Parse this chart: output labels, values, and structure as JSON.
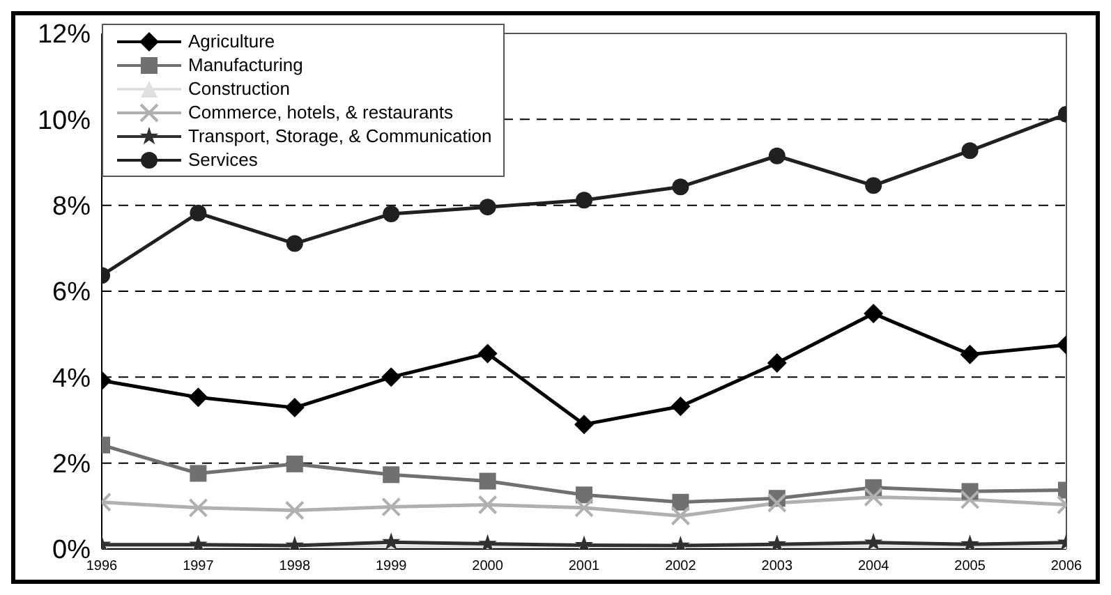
{
  "chart_data": {
    "type": "line",
    "categories": [
      "1996",
      "1997",
      "1998",
      "1999",
      "2000",
      "2001",
      "2002",
      "2003",
      "2004",
      "2005",
      "2006"
    ],
    "series": [
      {
        "name": "Agriculture",
        "color": "#000000",
        "marker": "diamond",
        "values": [
          3.92,
          3.53,
          3.29,
          4.0,
          4.55,
          2.9,
          3.32,
          4.33,
          5.48,
          4.53,
          4.75
        ]
      },
      {
        "name": "Manufacturing",
        "color": "#707070",
        "marker": "square",
        "values": [
          2.42,
          1.76,
          1.98,
          1.73,
          1.58,
          1.26,
          1.09,
          1.18,
          1.43,
          1.34,
          1.37
        ]
      },
      {
        "name": "Construction",
        "color": "#e0e0e0",
        "marker": "triangle",
        "values": [
          0.05,
          0.05,
          0.05,
          0.05,
          0.05,
          0.05,
          0.05,
          0.05,
          0.05,
          0.05,
          0.05
        ]
      },
      {
        "name": "Commerce, hotels, & restaurants",
        "color": "#b0b0b0",
        "marker": "cross",
        "values": [
          1.09,
          0.96,
          0.9,
          0.98,
          1.03,
          0.96,
          0.77,
          1.07,
          1.21,
          1.15,
          1.03
        ]
      },
      {
        "name": "Transport, Storage, & Communication",
        "color": "#303030",
        "marker": "star",
        "values": [
          0.1,
          0.1,
          0.08,
          0.16,
          0.12,
          0.09,
          0.08,
          0.11,
          0.15,
          0.11,
          0.15
        ]
      },
      {
        "name": "Services",
        "color": "#202020",
        "marker": "circle",
        "values": [
          6.37,
          7.82,
          7.11,
          7.8,
          7.96,
          8.12,
          8.43,
          9.15,
          8.46,
          9.27,
          10.12
        ]
      }
    ],
    "ylim": [
      0,
      12
    ],
    "yticks": [
      {
        "value": 0,
        "label": "0%"
      },
      {
        "value": 2,
        "label": "2%"
      },
      {
        "value": 4,
        "label": "4%"
      },
      {
        "value": 6,
        "label": "6%"
      },
      {
        "value": 8,
        "label": "8%"
      },
      {
        "value": 10,
        "label": "10%"
      },
      {
        "value": 12,
        "label": "12%"
      }
    ],
    "grid": "y",
    "legend": "top left",
    "line_style": "solid"
  }
}
